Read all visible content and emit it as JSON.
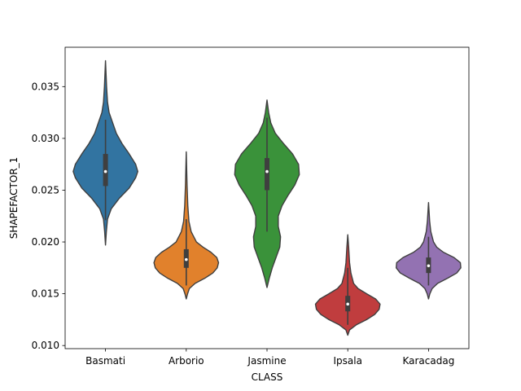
{
  "chart_data": {
    "type": "violin",
    "title": "",
    "xlabel": "CLASS",
    "ylabel": "SHAPEFACTOR_1",
    "ylim": [
      0.0097,
      0.0388
    ],
    "yticks": [
      0.01,
      0.015,
      0.02,
      0.025,
      0.03,
      0.035
    ],
    "ytick_labels": [
      "0.010",
      "0.015",
      "0.020",
      "0.025",
      "0.030",
      "0.035"
    ],
    "grid": false,
    "legend": "none",
    "categories": [
      "Basmati",
      "Arborio",
      "Jasmine",
      "Ipsala",
      "Karacadag"
    ],
    "colors": [
      "#3274a1",
      "#e1812c",
      "#3a923a",
      "#c03d3e",
      "#9372b2"
    ],
    "violins": [
      {
        "category": "Basmati",
        "min": 0.0197,
        "q1": 0.0254,
        "median": 0.0268,
        "q3": 0.0285,
        "max": 0.0375,
        "whisker_low": 0.0221,
        "whisker_high": 0.0318,
        "density": [
          [
            0.0197,
            0.0
          ],
          [
            0.021,
            0.012
          ],
          [
            0.0222,
            0.028
          ],
          [
            0.0232,
            0.08
          ],
          [
            0.0242,
            0.19
          ],
          [
            0.0252,
            0.33
          ],
          [
            0.0262,
            0.42
          ],
          [
            0.0268,
            0.45
          ],
          [
            0.0275,
            0.42
          ],
          [
            0.0285,
            0.33
          ],
          [
            0.0295,
            0.23
          ],
          [
            0.0305,
            0.15
          ],
          [
            0.0315,
            0.1
          ],
          [
            0.0325,
            0.05
          ],
          [
            0.0335,
            0.028
          ],
          [
            0.035,
            0.015
          ],
          [
            0.0375,
            0.0
          ]
        ]
      },
      {
        "category": "Arborio",
        "min": 0.0145,
        "q1": 0.0175,
        "median": 0.0183,
        "q3": 0.0193,
        "max": 0.0287,
        "whisker_low": 0.0158,
        "whisker_high": 0.0222,
        "density": [
          [
            0.0145,
            0.0
          ],
          [
            0.015,
            0.03
          ],
          [
            0.0155,
            0.07
          ],
          [
            0.016,
            0.2
          ],
          [
            0.0165,
            0.42
          ],
          [
            0.017,
            0.6
          ],
          [
            0.0175,
            0.7
          ],
          [
            0.018,
            0.73
          ],
          [
            0.0185,
            0.69
          ],
          [
            0.019,
            0.56
          ],
          [
            0.0195,
            0.38
          ],
          [
            0.02,
            0.23
          ],
          [
            0.021,
            0.11
          ],
          [
            0.022,
            0.06
          ],
          [
            0.0235,
            0.035
          ],
          [
            0.0255,
            0.018
          ],
          [
            0.0287,
            0.0
          ]
        ]
      },
      {
        "category": "Jasmine",
        "min": 0.0156,
        "q1": 0.025,
        "median": 0.0268,
        "q3": 0.0281,
        "max": 0.0337,
        "whisker_low": 0.021,
        "whisker_high": 0.032,
        "density": [
          [
            0.0156,
            0.0
          ],
          [
            0.0165,
            0.03
          ],
          [
            0.0175,
            0.07
          ],
          [
            0.0185,
            0.12
          ],
          [
            0.0195,
            0.17
          ],
          [
            0.0205,
            0.18
          ],
          [
            0.0215,
            0.15
          ],
          [
            0.0225,
            0.15
          ],
          [
            0.0235,
            0.2
          ],
          [
            0.0245,
            0.28
          ],
          [
            0.0255,
            0.37
          ],
          [
            0.0265,
            0.43
          ],
          [
            0.0275,
            0.42
          ],
          [
            0.0285,
            0.34
          ],
          [
            0.0295,
            0.22
          ],
          [
            0.0305,
            0.11
          ],
          [
            0.0315,
            0.05
          ],
          [
            0.0325,
            0.022
          ],
          [
            0.0337,
            0.0
          ]
        ]
      },
      {
        "category": "Ipsala",
        "min": 0.011,
        "q1": 0.0133,
        "median": 0.014,
        "q3": 0.0148,
        "max": 0.0207,
        "whisker_low": 0.012,
        "whisker_high": 0.0175,
        "density": [
          [
            0.011,
            0.0
          ],
          [
            0.0115,
            0.04
          ],
          [
            0.012,
            0.19
          ],
          [
            0.0125,
            0.42
          ],
          [
            0.013,
            0.6
          ],
          [
            0.0135,
            0.7
          ],
          [
            0.014,
            0.72
          ],
          [
            0.0145,
            0.62
          ],
          [
            0.015,
            0.42
          ],
          [
            0.0155,
            0.23
          ],
          [
            0.016,
            0.13
          ],
          [
            0.017,
            0.07
          ],
          [
            0.018,
            0.04
          ],
          [
            0.0195,
            0.02
          ],
          [
            0.0207,
            0.0
          ]
        ]
      },
      {
        "category": "Karacadag",
        "min": 0.0145,
        "q1": 0.017,
        "median": 0.0177,
        "q3": 0.0185,
        "max": 0.0238,
        "whisker_low": 0.0158,
        "whisker_high": 0.0205,
        "density": [
          [
            0.0145,
            0.0
          ],
          [
            0.015,
            0.03
          ],
          [
            0.0155,
            0.08
          ],
          [
            0.016,
            0.2
          ],
          [
            0.0165,
            0.42
          ],
          [
            0.017,
            0.62
          ],
          [
            0.0175,
            0.71
          ],
          [
            0.018,
            0.7
          ],
          [
            0.0185,
            0.56
          ],
          [
            0.019,
            0.33
          ],
          [
            0.0195,
            0.18
          ],
          [
            0.02,
            0.11
          ],
          [
            0.021,
            0.05
          ],
          [
            0.022,
            0.025
          ],
          [
            0.0238,
            0.0
          ]
        ]
      }
    ]
  }
}
